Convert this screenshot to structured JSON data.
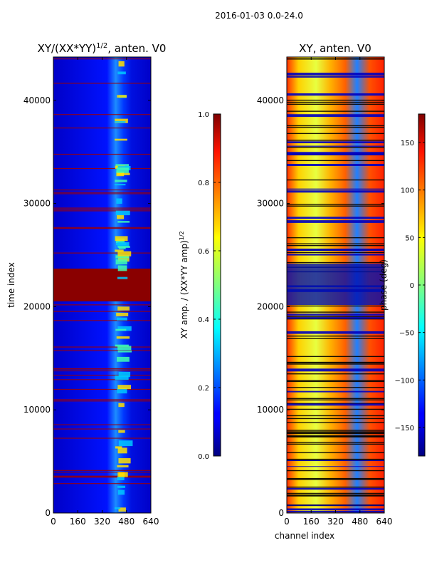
{
  "suptitle": "2016-01-03 0.0-24.0",
  "chart_data": [
    {
      "type": "heatmap",
      "title": "XY/(XX*YY)",
      "title_superscript": "1/2",
      "title_suffix": ", anten. V0",
      "xlabel": "",
      "ylabel": "time index",
      "xlim": [
        0,
        640
      ],
      "ylim": [
        0,
        44200
      ],
      "xticks": [
        0,
        160,
        320,
        480,
        640
      ],
      "yticks": [
        0,
        10000,
        20000,
        30000,
        40000
      ],
      "colorbar": {
        "label": "XY amp. / (XX*YY amp)",
        "label_superscript": "1/2",
        "vmin": 0.0,
        "vmax": 1.0,
        "ticks": [
          "0.0",
          "0.2",
          "0.4",
          "0.6",
          "0.8",
          "1.0"
        ],
        "tick_values": [
          0.0,
          0.2,
          0.4,
          0.6,
          0.8,
          1.0
        ]
      }
    },
    {
      "type": "heatmap",
      "title": "XY, anten. V0",
      "xlabel": "channel index",
      "ylabel": "",
      "xlim": [
        0,
        640
      ],
      "ylim": [
        0,
        44200
      ],
      "xticks": [
        0,
        160,
        320,
        480,
        640
      ],
      "yticks": [
        0,
        10000,
        20000,
        30000,
        40000
      ],
      "colorbar": {
        "label": "phase (deg)",
        "vmin": -180,
        "vmax": 180,
        "ticks": [
          "−150",
          "−100",
          "−50",
          "0",
          "50",
          "100",
          "150"
        ],
        "tick_values": [
          -150,
          -100,
          -50,
          0,
          50,
          100,
          150
        ]
      }
    }
  ]
}
